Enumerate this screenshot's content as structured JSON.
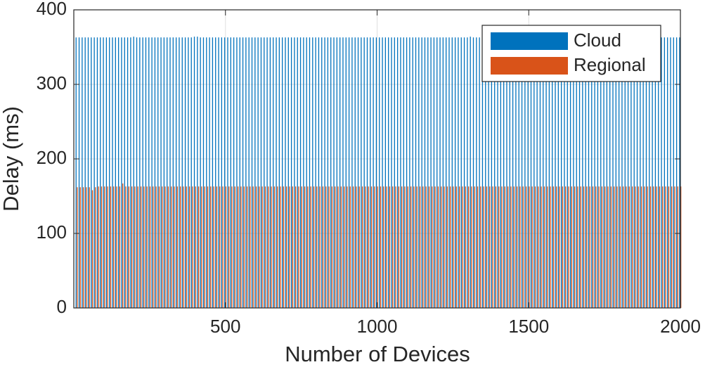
{
  "chart_data": {
    "type": "bar",
    "x": [
      10,
      20,
      30,
      40,
      50,
      60,
      70,
      80,
      90,
      100,
      110,
      120,
      130,
      140,
      150,
      160,
      170,
      180,
      190,
      200,
      210,
      220,
      230,
      240,
      250,
      260,
      270,
      280,
      290,
      300,
      310,
      320,
      330,
      340,
      350,
      360,
      370,
      380,
      390,
      400,
      410,
      420,
      430,
      440,
      450,
      460,
      470,
      480,
      490,
      500,
      510,
      520,
      530,
      540,
      550,
      560,
      570,
      580,
      590,
      600,
      610,
      620,
      630,
      640,
      650,
      660,
      670,
      680,
      690,
      700,
      710,
      720,
      730,
      740,
      750,
      760,
      770,
      780,
      790,
      800,
      810,
      820,
      830,
      840,
      850,
      860,
      870,
      880,
      890,
      900,
      910,
      920,
      930,
      940,
      950,
      960,
      970,
      980,
      990,
      1000,
      1010,
      1020,
      1030,
      1040,
      1050,
      1060,
      1070,
      1080,
      1090,
      1100,
      1110,
      1120,
      1130,
      1140,
      1150,
      1160,
      1170,
      1180,
      1190,
      1200,
      1210,
      1220,
      1230,
      1240,
      1250,
      1260,
      1270,
      1280,
      1290,
      1300,
      1310,
      1320,
      1330,
      1340,
      1350,
      1360,
      1370,
      1380,
      1390,
      1400,
      1410,
      1420,
      1430,
      1440,
      1450,
      1460,
      1470,
      1480,
      1490,
      1500,
      1510,
      1520,
      1530,
      1540,
      1550,
      1560,
      1570,
      1580,
      1590,
      1600,
      1610,
      1620,
      1630,
      1640,
      1650,
      1660,
      1670,
      1680,
      1690,
      1700,
      1710,
      1720,
      1730,
      1740,
      1750,
      1760,
      1770,
      1780,
      1790,
      1800,
      1810,
      1820,
      1830,
      1840,
      1850,
      1860,
      1870,
      1880,
      1890,
      1900,
      1910,
      1920,
      1930,
      1940,
      1950,
      1960,
      1970,
      1980,
      1990,
      2000
    ],
    "series": [
      {
        "name": "Cloud",
        "color": "#0072BD",
        "values": [
          363,
          363,
          363,
          363,
          363,
          363,
          363,
          363,
          363,
          363,
          363,
          363,
          363,
          363,
          363,
          363,
          363,
          363,
          363,
          364,
          363,
          363,
          363,
          363,
          363,
          363,
          363,
          363,
          363,
          363,
          363,
          363,
          363,
          363,
          363,
          363,
          363,
          363,
          363,
          364,
          364,
          363,
          363,
          363,
          363,
          363,
          363,
          363,
          363,
          363,
          363,
          363,
          363,
          363,
          363,
          363,
          363,
          363,
          363,
          363,
          363,
          363,
          363,
          363,
          363,
          363,
          363,
          363,
          363,
          363,
          363,
          363,
          363,
          363,
          363,
          363,
          363,
          363,
          363,
          363,
          363,
          363,
          363,
          363,
          363,
          363,
          363,
          363,
          363,
          363,
          363,
          363,
          363,
          363,
          363,
          363,
          363,
          363,
          363,
          363,
          363,
          363,
          363,
          363,
          363,
          363,
          363,
          363,
          363,
          363,
          363,
          363,
          363,
          363,
          363,
          363,
          363,
          363,
          363,
          363,
          363,
          363,
          363,
          363,
          363,
          363,
          363,
          363,
          363,
          363,
          364,
          363,
          363,
          363,
          363,
          363,
          363,
          363,
          363,
          363,
          363,
          363,
          363,
          363,
          363,
          363,
          363,
          363,
          363,
          363,
          363,
          363,
          363,
          363,
          363,
          363,
          363,
          363,
          363,
          363,
          363,
          363,
          363,
          363,
          363,
          363,
          363,
          363,
          363,
          363,
          363,
          363,
          363,
          363,
          363,
          363,
          363,
          363,
          363,
          363,
          363,
          363,
          363,
          363,
          363,
          363,
          363,
          363,
          363,
          363,
          363,
          363,
          363,
          363,
          363,
          363,
          363,
          363,
          363,
          363
        ]
      },
      {
        "name": "Regional",
        "color": "#D95319",
        "values": [
          162,
          162,
          162,
          162,
          162,
          158,
          162,
          163,
          163,
          163,
          163,
          163,
          163,
          163,
          163,
          167,
          163,
          163,
          163,
          163,
          163,
          163,
          163,
          163,
          163,
          163,
          163,
          163,
          163,
          163,
          163,
          163,
          163,
          163,
          163,
          163,
          163,
          163,
          163,
          163,
          163,
          163,
          163,
          163,
          163,
          163,
          163,
          163,
          163,
          163,
          163,
          163,
          163,
          163,
          163,
          163,
          163,
          163,
          163,
          163,
          163,
          163,
          163,
          163,
          163,
          163,
          163,
          163,
          163,
          163,
          163,
          163,
          163,
          163,
          163,
          163,
          163,
          163,
          163,
          163,
          163,
          163,
          163,
          163,
          163,
          163,
          163,
          163,
          163,
          163,
          163,
          163,
          163,
          163,
          163,
          163,
          163,
          163,
          163,
          163,
          163,
          163,
          163,
          163,
          163,
          163,
          163,
          163,
          163,
          163,
          163,
          163,
          163,
          163,
          163,
          163,
          163,
          163,
          163,
          163,
          163,
          163,
          163,
          163,
          163,
          163,
          163,
          163,
          163,
          163,
          163,
          163,
          163,
          163,
          163,
          163,
          163,
          163,
          163,
          163,
          163,
          163,
          163,
          163,
          163,
          163,
          163,
          163,
          163,
          163,
          163,
          163,
          163,
          163,
          163,
          163,
          163,
          163,
          163,
          163,
          163,
          163,
          163,
          163,
          163,
          163,
          163,
          163,
          163,
          163,
          163,
          163,
          163,
          163,
          163,
          163,
          163,
          163,
          163,
          163,
          163,
          163,
          163,
          163,
          163,
          163,
          163,
          163,
          163,
          163,
          163,
          163,
          163,
          163,
          163,
          163,
          163,
          163,
          163,
          163
        ]
      }
    ],
    "xlabel": "Number of Devices",
    "ylabel": "Delay (ms)",
    "xlim": [
      0,
      2000
    ],
    "xticks": [
      500,
      1000,
      1500,
      2000
    ],
    "ylim": [
      0,
      400
    ],
    "yticks": [
      0,
      100,
      200,
      300,
      400
    ],
    "grid": true,
    "legend": "top-right"
  }
}
